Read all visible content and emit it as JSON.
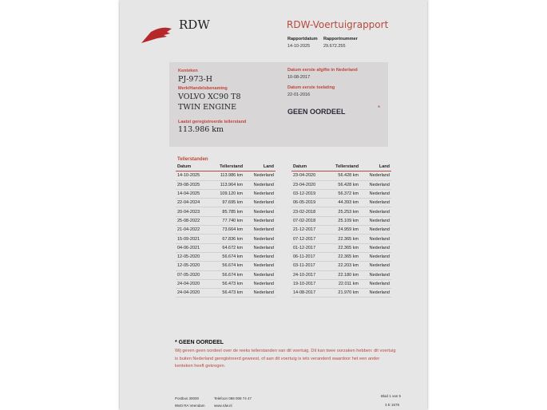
{
  "header": {
    "logo": "RDW",
    "title": "RDW-Voertuigrapport",
    "rapportdatum_label": "Rapportdatum",
    "rapportdatum": "14-10-2025",
    "rapportnummer_label": "Rapportnummer",
    "rapportnummer": "29.672.255"
  },
  "vehicle": {
    "kenteken_label": "Kenteken",
    "kenteken": "PJ-973-H",
    "merk_label": "Merk/Handelsbenaming",
    "merk_line1": "VOLVO XC90 T8",
    "merk_line2": "TWIN ENGINE",
    "teller_label": "Laatst geregistreerde tellerstand",
    "teller": "113.986 km",
    "afgifte_label": "Datum eerste afgifte in Nederland",
    "afgifte": "10-08-2017",
    "toelating_label": "Datum eerste toelating",
    "toelating": "22-01-2016",
    "oordeel": "GEEN OORDEEL",
    "asterisk": "*"
  },
  "tellerstanden": {
    "title": "Tellerstanden",
    "columns": [
      "Datum",
      "Tellerstand",
      "Land"
    ],
    "left": [
      [
        "14-10-2025",
        "113.986 km",
        "Nederland"
      ],
      [
        "29-08-2025",
        "113.964 km",
        "Nederland"
      ],
      [
        "14-04-2025",
        "109.120 km",
        "Nederland"
      ],
      [
        "22-04-2024",
        "97.695 km",
        "Nederland"
      ],
      [
        "20-04-2023",
        "85.785 km",
        "Nederland"
      ],
      [
        "25-08-2022",
        "77.740 km",
        "Nederland"
      ],
      [
        "21-04-2022",
        "73.664 km",
        "Nederland"
      ],
      [
        "15-09-2021",
        "67.836 km",
        "Nederland"
      ],
      [
        "04-06-2021",
        "64.672 km",
        "Nederland"
      ],
      [
        "12-05-2020",
        "56.674 km",
        "Nederland"
      ],
      [
        "12-05-2020",
        "56.674 km",
        "Nederland"
      ],
      [
        "07-05-2020",
        "56.674 km",
        "Nederland"
      ],
      [
        "24-04-2020",
        "56.473 km",
        "Nederland"
      ],
      [
        "24-04-2020",
        "56.473 km",
        "Nederland"
      ]
    ],
    "right": [
      [
        "23-04-2020",
        "56.428 km",
        "Nederland"
      ],
      [
        "23-04-2020",
        "56.428 km",
        "Nederland"
      ],
      [
        "03-12-2019",
        "56.372 km",
        "Nederland"
      ],
      [
        "06-05-2019",
        "44.393 km",
        "Nederland"
      ],
      [
        "23-02-2018",
        "25.253 km",
        "Nederland"
      ],
      [
        "07-02-2018",
        "25.109 km",
        "Nederland"
      ],
      [
        "21-12-2017",
        "24.959 km",
        "Nederland"
      ],
      [
        "07-12-2017",
        "22.365 km",
        "Nederland"
      ],
      [
        "01-12-2017",
        "22.365 km",
        "Nederland"
      ],
      [
        "06-11-2017",
        "22.365 km",
        "Nederland"
      ],
      [
        "03-11-2017",
        "22.203 km",
        "Nederland"
      ],
      [
        "24-10-2017",
        "22.180 km",
        "Nederland"
      ],
      [
        "19-10-2017",
        "22.011 km",
        "Nederland"
      ],
      [
        "14-08-2017",
        "21.970 km",
        "Nederland"
      ]
    ]
  },
  "note": {
    "title": "* GEEN OORDEEL",
    "text": "Wij geven geen oordeel over de reeks tellerstanden van dit voertuig. Dit kan twee oorzaken hebben: dit voertuig is buiten Nederland geregistreerd geweest, of aan dit voertuig is iets veranderd waardoor het een ander kenteken heeft gekregen."
  },
  "footer": {
    "postbus": "Postbus 30000",
    "postcode": "9640 RA Veendam",
    "telefoon": "Telefoon 088 008 74 47",
    "web": "www.rdw.nl",
    "blad": "Blad 1 van 5",
    "code": "3 E 1678"
  }
}
